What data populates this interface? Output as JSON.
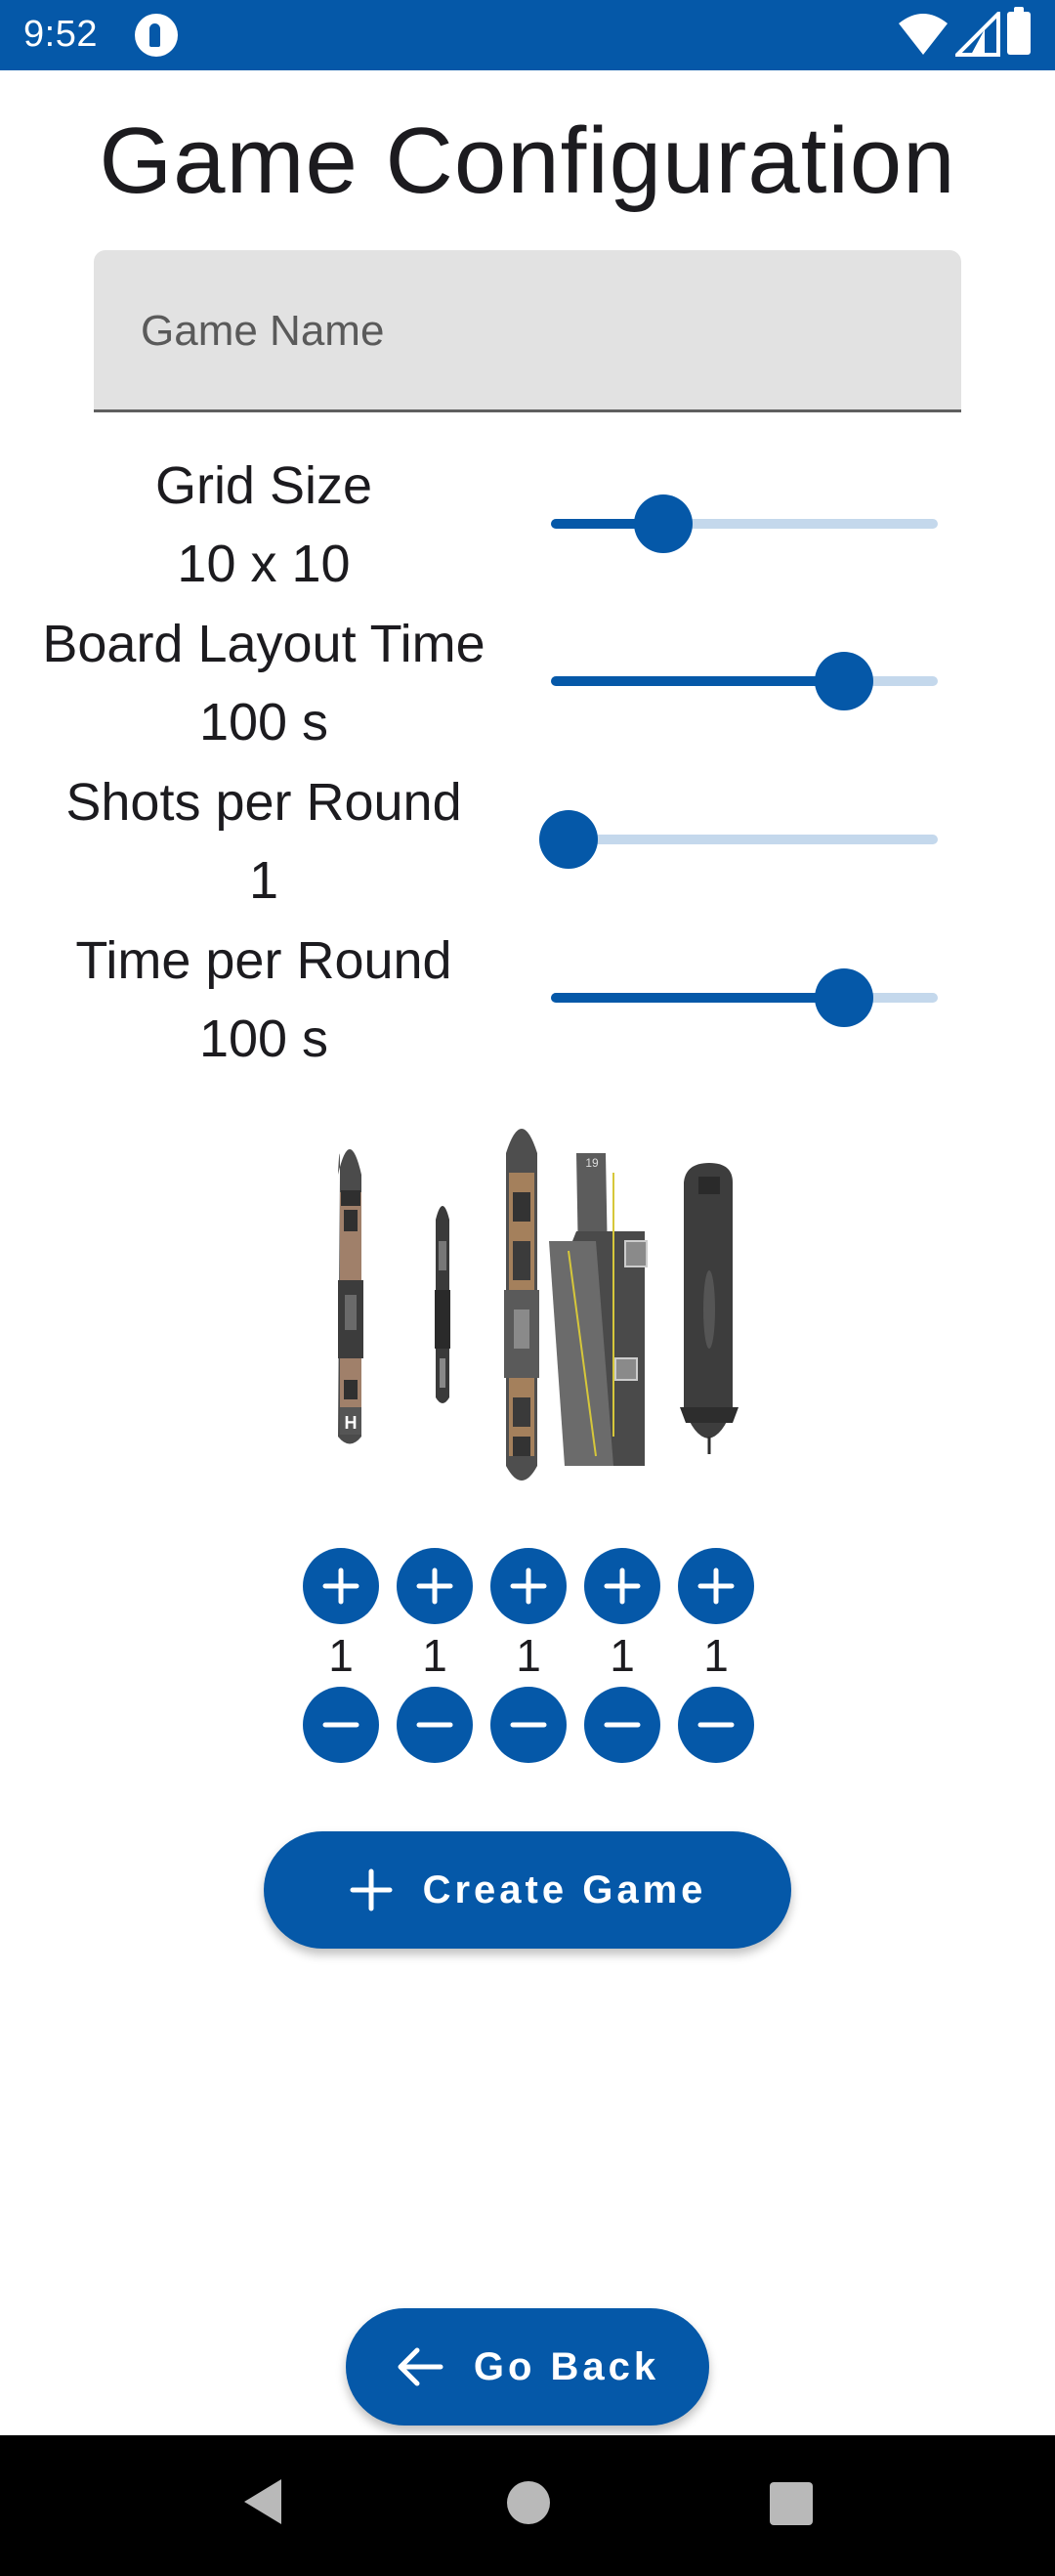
{
  "status_bar": {
    "time": "9:52",
    "background": "#0558a8",
    "icons": [
      "app-notification-icon",
      "wifi-icon",
      "signal-icon",
      "battery-icon"
    ]
  },
  "title": "Game Configuration",
  "game_name_field": {
    "placeholder": "Game Name",
    "value": ""
  },
  "settings": {
    "grid_size": {
      "label": "Grid Size",
      "value": "10 x 10",
      "slider_fraction": 0.28
    },
    "board_layout_time": {
      "label": "Board Layout Time",
      "value": "100 s",
      "slider_fraction": 0.81
    },
    "shots_per_round": {
      "label": "Shots per Round",
      "value": "1",
      "slider_fraction": 0.0
    },
    "time_per_round": {
      "label": "Time per Round",
      "value": "100 s",
      "slider_fraction": 0.81
    }
  },
  "ships": [
    {
      "name": "destroyer-ship",
      "count": "1"
    },
    {
      "name": "patrol-boat-ship",
      "count": "1"
    },
    {
      "name": "battleship-ship",
      "count": "1"
    },
    {
      "name": "aircraft-carrier-ship",
      "count": "1"
    },
    {
      "name": "submarine-ship",
      "count": "1"
    }
  ],
  "buttons": {
    "create_game": "Create Game",
    "go_back": "Go Back"
  },
  "colors": {
    "primary": "#0558a8",
    "slider_inactive": "#c4d8ec",
    "field_background": "#e2e2e2"
  }
}
